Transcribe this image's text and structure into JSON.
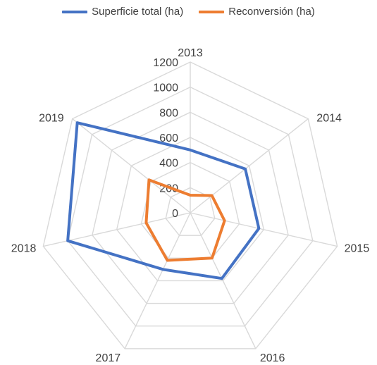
{
  "chart_data": {
    "type": "radar",
    "categories": [
      "2013",
      "2014",
      "2015",
      "2016",
      "2017",
      "2018",
      "2019"
    ],
    "r_ticks": [
      0,
      200,
      400,
      600,
      800,
      1000,
      1200
    ],
    "rlim": [
      0,
      1200
    ],
    "grid": true,
    "legend_position": "top",
    "series": [
      {
        "name": "Superficie total (ha)",
        "color": "#4472C4",
        "values": [
          500,
          560,
          560,
          580,
          500,
          1000,
          1150
        ]
      },
      {
        "name": "Reconversión (ha)",
        "color": "#ED7D31",
        "values": [
          140,
          220,
          280,
          400,
          420,
          360,
          420
        ]
      }
    ]
  }
}
